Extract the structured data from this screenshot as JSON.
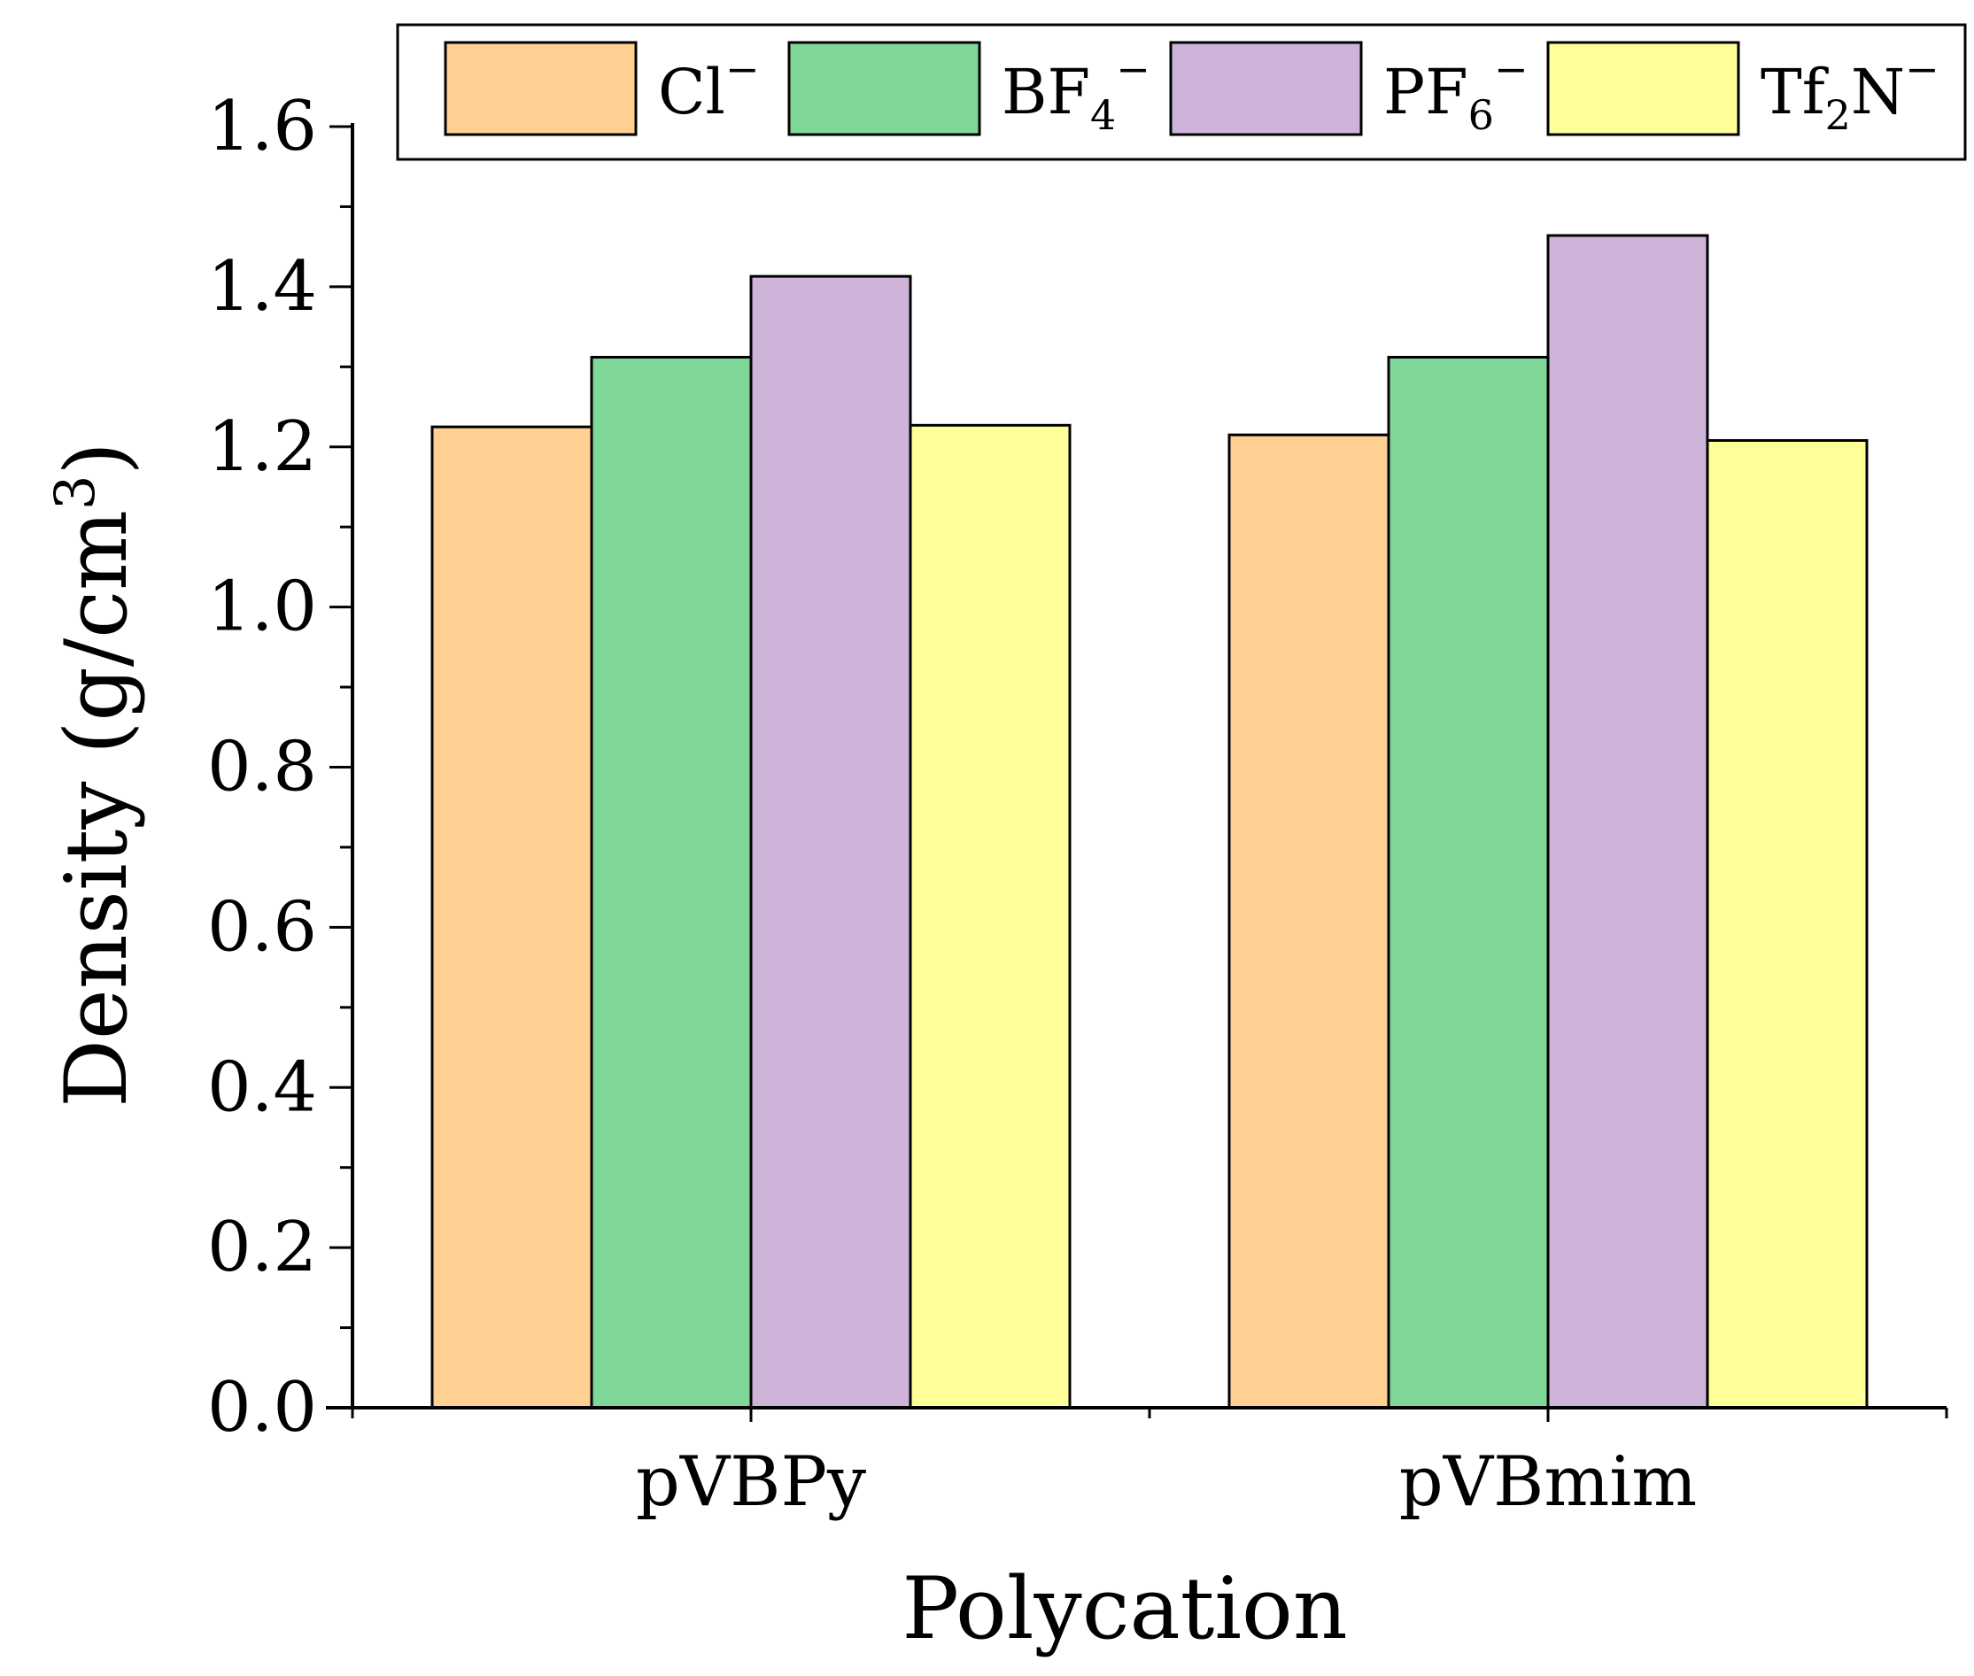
{
  "chart_data": {
    "type": "bar",
    "title": "",
    "xlabel": "Polycation",
    "ylabel_parts": {
      "main": "Density (g/cm",
      "sup": "3",
      "close": ")"
    },
    "categories": [
      "pVBPy",
      "pVBmim"
    ],
    "ylim": [
      0,
      1.6
    ],
    "yticks": [
      "0.0",
      "0.2",
      "0.4",
      "0.6",
      "0.8",
      "1.0",
      "1.2",
      "1.4",
      "1.6"
    ],
    "legend_position": "top",
    "series": [
      {
        "name": "Cl⁻",
        "legend": {
          "base": "Cl",
          "sub": "",
          "sup": "−"
        },
        "color": "#FFD092",
        "values": [
          1.225,
          1.215
        ]
      },
      {
        "name": "BF₄⁻",
        "legend": {
          "base": "BF",
          "sub": "4",
          "sup": "−"
        },
        "color": "#7FD898",
        "values": [
          1.312,
          1.312
        ]
      },
      {
        "name": "PF₆⁻",
        "legend": {
          "base": "PF",
          "sub": "6",
          "sup": "−"
        },
        "color": "#CDB4D8",
        "values": [
          1.413,
          1.464
        ]
      },
      {
        "name": "Tf₂N⁻",
        "legend": {
          "base": "Tf",
          "sub": "2",
          "post": "N",
          "sup": "−"
        },
        "color": "#FFFF99",
        "values": [
          1.227,
          1.208
        ]
      }
    ]
  }
}
